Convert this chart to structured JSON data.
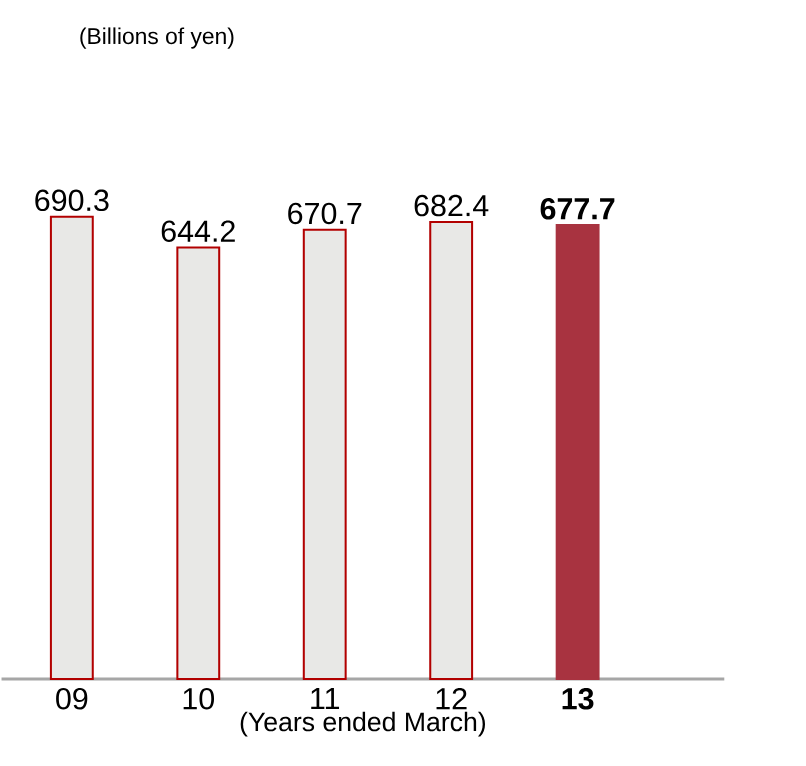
{
  "chart_data": {
    "type": "bar",
    "annotations": [
      "(Billions of yen)"
    ],
    "xlabel": "(Years ended March)",
    "categories": [
      "09",
      "10",
      "11",
      "12",
      "**13**"
    ],
    "values": [
      690.3,
      644.2,
      670.7,
      682.4,
      677.7
    ],
    "colors": [
      "#e8e8e6",
      "#e8e8e6",
      "#e8e8e6",
      "#e8e8e6",
      "#a83340"
    ],
    "value_labels": [
      "690.3",
      "644.2",
      "670.7",
      "682.4",
      "**677.7**"
    ]
  }
}
